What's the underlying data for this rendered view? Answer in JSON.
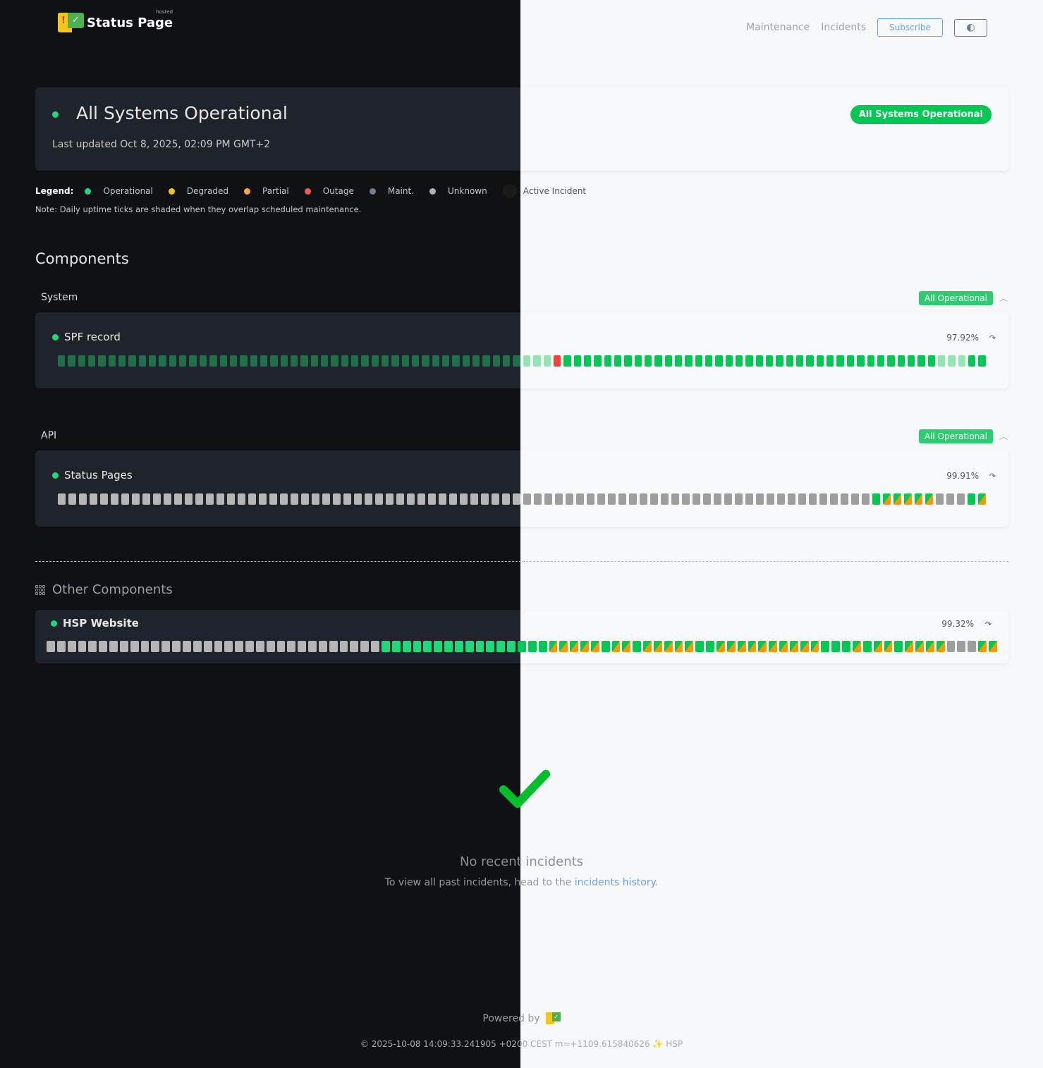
{
  "header": {
    "logo_text": "Status Page",
    "logo_sup": "hosted",
    "nav": [
      "Maintenance",
      "Incidents"
    ],
    "subscribe_label": "Subscribe",
    "theme_toggle_icon": "contrast-icon"
  },
  "status": {
    "title": "All Systems Operational",
    "updated": "Last updated Oct 8, 2025, 02:09 PM GMT+2",
    "badge": "All Systems Operational"
  },
  "legend": {
    "label": "Legend:",
    "items": [
      {
        "label": "Operational",
        "color": "#1ed97a"
      },
      {
        "label": "Degraded",
        "color": "#f7c21d"
      },
      {
        "label": "Partial",
        "color": "#ffa53a"
      },
      {
        "label": "Outage",
        "color": "#f5564a"
      },
      {
        "label": "Maint.",
        "color": "#71808c"
      },
      {
        "label": "Unknown",
        "color": "#b0b0b0"
      }
    ],
    "active_incident": "Active Incident",
    "note": "Note: Daily uptime ticks are shaded when they overlap scheduled maintenance."
  },
  "components_heading": "Components",
  "groups": [
    {
      "label": "System",
      "badge": "All Operational",
      "component": {
        "name": "SPF record",
        "uptime": "97.92%",
        "ticks": "sssssssssssssssssssssssssssssssssssssssssssssssssxooooooooooooooooooooooooooooooooooooosssoo"
      }
    },
    {
      "label": "API",
      "badge": "All Operational",
      "component": {
        "name": "Status Pages",
        "uptime": "99.91%",
        "ticks": "uuuuuuuuuuuuuuuuuuuuuuuuuuuuuuuuuuuuuuuuuuuuuuuuuuuuuuuuuuuuuuuuuuuuuuuuuuuuuopppppuuuop"
      }
    }
  ],
  "other": {
    "heading": "Other Components",
    "component": {
      "name": "HSP Website",
      "uptime": "99.32%",
      "ticks": "uuuuuuuuuuuuuuuuuuuuuuuuuuuuuuuuoooooooooooooooopppppoppopppppooppppppppppooopoppoppppuuupp"
    }
  },
  "tick_legend": {
    "o": "operational",
    "s": "shaded (maintenance overlap)",
    "u": "unknown",
    "x": "outage",
    "p": "partial"
  },
  "incidents": {
    "title": "No recent incidents",
    "sub_prefix": "To view all past incidents, head to the ",
    "link": "incidents history",
    "sub_suffix": "."
  },
  "footer": {
    "powered_by": "Powered by",
    "copyright": "© 2025-10-08 14:09:33.241905 +0200 CEST m=+1109.615840626 ✨ HSP"
  }
}
